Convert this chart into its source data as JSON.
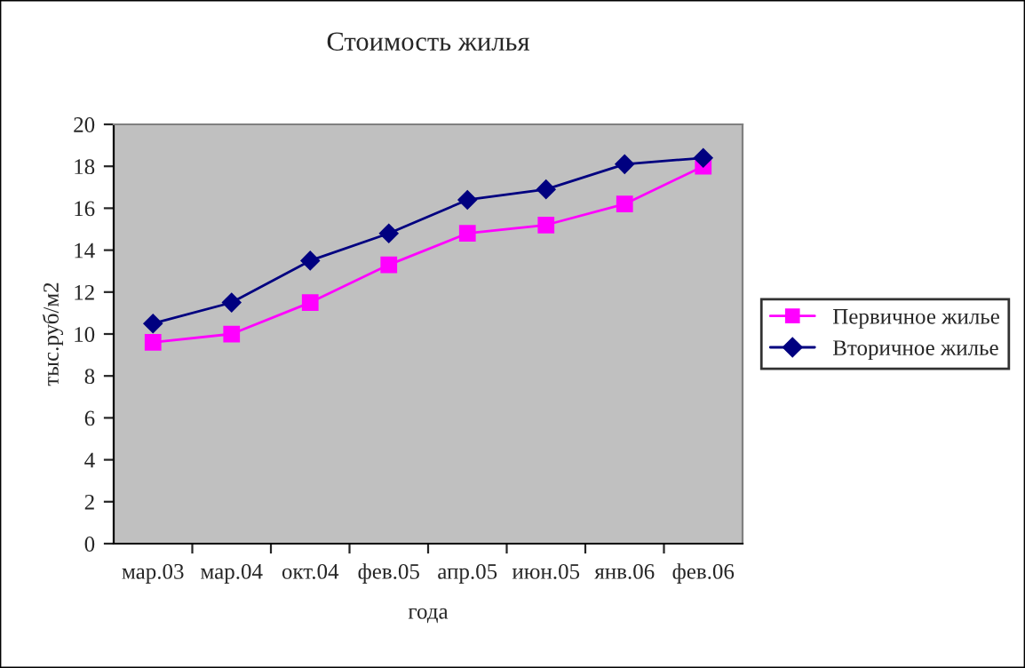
{
  "chart_data": {
    "type": "line",
    "title": "Стоимость жилья",
    "xlabel": "года",
    "ylabel": "тыс.руб/м2",
    "categories": [
      "мар.03",
      "мар.04",
      "окт.04",
      "фев.05",
      "апр.05",
      "июн.05",
      "янв.06",
      "фев.06"
    ],
    "series": [
      {
        "name": "Первичное жилье",
        "color": "#ff00ff",
        "marker": "square",
        "values": [
          9.6,
          10.0,
          11.5,
          13.3,
          14.8,
          15.2,
          16.2,
          18.0
        ]
      },
      {
        "name": "Вторичное жилье",
        "color": "#000080",
        "marker": "diamond",
        "values": [
          10.5,
          11.5,
          13.5,
          14.8,
          16.4,
          16.9,
          18.1,
          18.4
        ]
      }
    ],
    "ylim": [
      0,
      20
    ],
    "yticks": [
      0,
      2,
      4,
      6,
      8,
      10,
      12,
      14,
      16,
      18,
      20
    ],
    "grid": false,
    "legend": "right",
    "line_style": "solid"
  }
}
